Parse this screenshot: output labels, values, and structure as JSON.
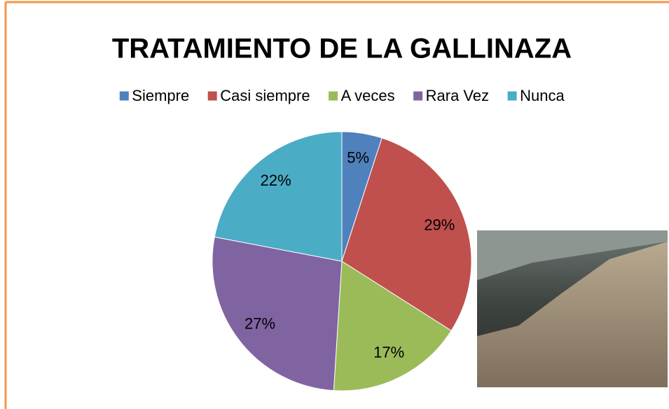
{
  "chart_data": {
    "type": "pie",
    "title": "TRATAMIENTO DE LA GALLINAZA",
    "categories": [
      "Siempre",
      "Casi siempre",
      "A veces",
      "Rara Vez",
      "Nunca"
    ],
    "values": [
      5,
      29,
      17,
      27,
      22
    ],
    "value_labels": [
      "5%",
      "29%",
      "17%",
      "27%",
      "22%"
    ],
    "colors": [
      "#4f81bd",
      "#c0504d",
      "#9bbb59",
      "#8064a2",
      "#4bacc6"
    ],
    "legend": "top"
  }
}
